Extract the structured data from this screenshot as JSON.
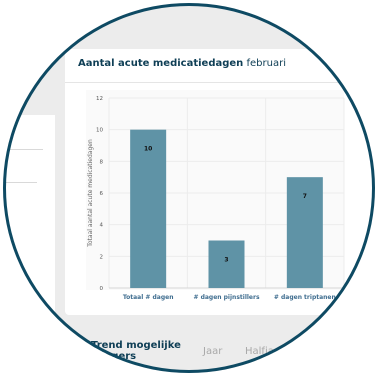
{
  "card": {
    "title_bold": "Aantal acute medicatiedagen",
    "title_month": "februari"
  },
  "chart_data": {
    "type": "bar",
    "categories": [
      "Totaal # dagen",
      "# dagen pijnstillers",
      "# dagen triptanen"
    ],
    "values": [
      10,
      3,
      7
    ],
    "data_labels": [
      "10",
      "3",
      "7"
    ],
    "ylabel": "Totaal aantal acute medicatiedagen",
    "ylim": [
      0,
      12
    ],
    "yticks": [
      0,
      2,
      4,
      6,
      8,
      10,
      12
    ],
    "grid": true,
    "bar_color": "#5f93a6",
    "label_color": "#3f6d8f"
  },
  "bottom": {
    "title": "Trend mogelijke triggers",
    "tabs": [
      "Jaar",
      "Halfjaar"
    ]
  }
}
